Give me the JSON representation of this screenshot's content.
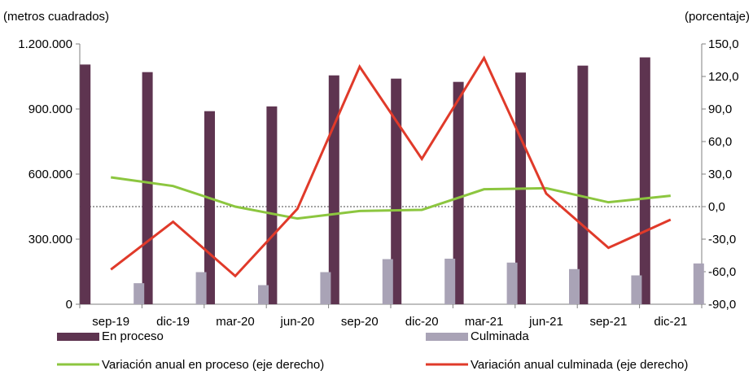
{
  "chart_data": {
    "type": "bar",
    "left_axis_unit_label": "(metros cuadrados)",
    "right_axis_unit_label": "(porcentaje)",
    "categories": [
      "sep-19",
      "dic-19",
      "mar-20",
      "jun-20",
      "sep-20",
      "dic-20",
      "mar-21",
      "jun-21",
      "sep-21",
      "dic-21"
    ],
    "left_axis": {
      "min": 0,
      "max": 1200000,
      "ticks": [
        "0",
        "300.000",
        "600.000",
        "900.000",
        "1.200.000"
      ]
    },
    "right_axis": {
      "min": -90,
      "max": 150,
      "ticks": [
        "-90,0",
        "-60,0",
        "-30,0",
        "0,0",
        "30,0",
        "60,0",
        "90,0",
        "120,0",
        "150,0"
      ]
    },
    "reference_line_right_value": 0,
    "series": [
      {
        "name": "En proceso",
        "kind": "bar",
        "axis": "left",
        "color": "#5e3450",
        "values": [
          1105000,
          1070000,
          890000,
          912000,
          1055000,
          1040000,
          1025000,
          1068000,
          1100000,
          1138000
        ]
      },
      {
        "name": "Culminada",
        "kind": "bar",
        "axis": "left",
        "color": "#a9a3b6",
        "values": [
          97000,
          148000,
          88000,
          148000,
          208000,
          210000,
          192000,
          162000,
          133000,
          188000
        ]
      },
      {
        "name": "Variación anual en proceso (eje derecho)",
        "kind": "line",
        "axis": "right",
        "color": "#8cc63f",
        "values": [
          27,
          19,
          0,
          -11,
          -4,
          -3,
          16,
          17,
          4,
          10
        ]
      },
      {
        "name": "Variación anual culminada (eje derecho)",
        "kind": "line",
        "axis": "right",
        "color": "#e03a2a",
        "values": [
          -58,
          -14,
          -64,
          -2,
          129,
          44,
          137,
          12,
          -38,
          -12
        ]
      }
    ]
  }
}
